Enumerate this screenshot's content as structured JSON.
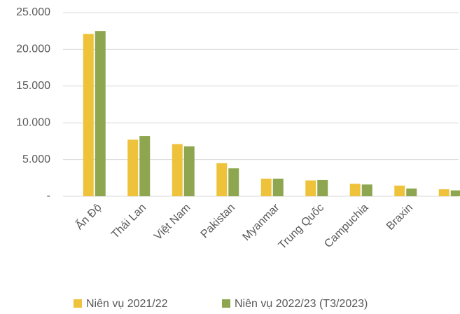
{
  "chart_data": {
    "type": "bar",
    "categories": [
      "Ấn Độ",
      "Thái Lan",
      "Việt Nam",
      "Pakistan",
      "Myanmar",
      "Trung Quốc",
      "Campuchia",
      "Braxin",
      null
    ],
    "series": [
      {
        "name": "Niên vụ 2021/22",
        "color": "#eec23a",
        "values": [
          22100,
          7700,
          7100,
          4500,
          2400,
          2150,
          1700,
          1450,
          950
        ]
      },
      {
        "name": "Niên vụ 2022/23 (T3/2023)",
        "color": "#8ea64f",
        "values": [
          22500,
          8200,
          6800,
          3800,
          2400,
          2200,
          1600,
          1050,
          800
        ]
      }
    ],
    "ylim": [
      0,
      25000
    ],
    "yticks": [
      {
        "value": 0,
        "label": "-"
      },
      {
        "value": 5000,
        "label": "5.000"
      },
      {
        "value": 10000,
        "label": "10.000"
      },
      {
        "value": 15000,
        "label": "15.000"
      },
      {
        "value": 20000,
        "label": "20.000"
      },
      {
        "value": 25000,
        "label": "25.000"
      }
    ],
    "grid": true,
    "legend": "bottom"
  }
}
